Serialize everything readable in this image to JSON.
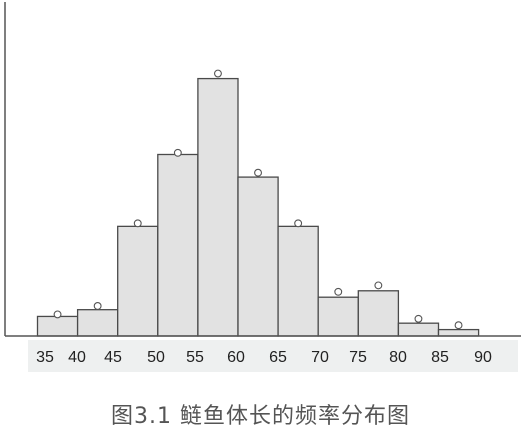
{
  "caption": "图3.1  鲢鱼体长的频率分布图",
  "chart_data": {
    "type": "bar",
    "title": "",
    "xlabel": "",
    "ylabel": "",
    "x_ticks": [
      "35",
      "40",
      "45",
      "50",
      "55",
      "60",
      "65",
      "70",
      "75",
      "80",
      "85",
      "90"
    ],
    "bins": [
      {
        "from": 37.5,
        "to": 42.5,
        "value": 0.058,
        "point": 0.064
      },
      {
        "from": 42.5,
        "to": 47.5,
        "value": 0.078,
        "point": 0.089
      },
      {
        "from": 47.5,
        "to": 52.5,
        "value": 0.325,
        "point": 0.334
      },
      {
        "from": 52.5,
        "to": 57.5,
        "value": 0.538,
        "point": 0.543
      },
      {
        "from": 57.5,
        "to": 62.5,
        "value": 0.763,
        "point": 0.778
      },
      {
        "from": 62.5,
        "to": 67.5,
        "value": 0.471,
        "point": 0.484
      },
      {
        "from": 67.5,
        "to": 72.5,
        "value": 0.325,
        "point": 0.334
      },
      {
        "from": 72.5,
        "to": 77.5,
        "value": 0.115,
        "point": 0.131
      },
      {
        "from": 77.5,
        "to": 82.5,
        "value": 0.134,
        "point": 0.15
      },
      {
        "from": 82.5,
        "to": 87.5,
        "value": 0.038,
        "point": 0.051
      },
      {
        "from": 87.5,
        "to": 92.5,
        "value": 0.019,
        "point": 0.032
      }
    ],
    "ylim": [
      0,
      0.99
    ],
    "grid": false,
    "colors": {
      "bar_fill": "#e2e2e2",
      "bar_stroke": "#4a4a4a",
      "axis": "#555555"
    }
  }
}
